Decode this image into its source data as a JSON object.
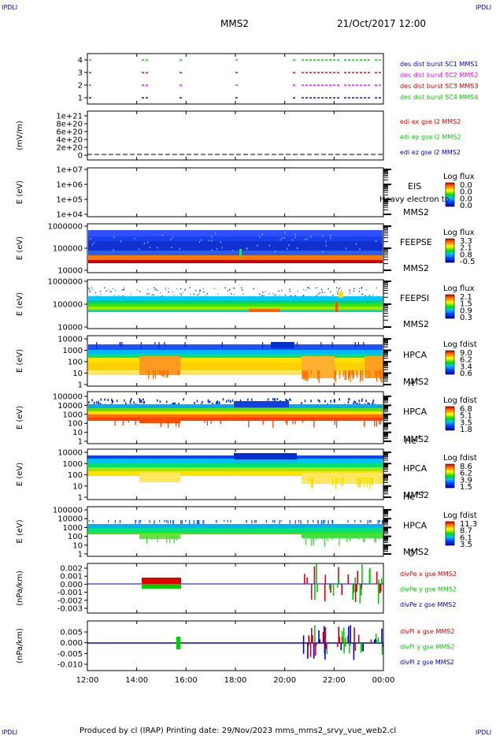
{
  "page": {
    "corner_label": "IPDLI",
    "title": "MMS2",
    "date": "21/Oct/2017 12:00",
    "footer": "Produced by cl (IRAP)    Printing date: 29/Nov/2023   mms_mms2_srvy_vue_web2.cl"
  },
  "colors": {
    "sc1": "#0000cc",
    "sc2": "#ff00ff",
    "sc3": "#dd0000",
    "sc4": "#00cc00",
    "ex": "#dd0000",
    "ey": "#00cc00",
    "ez": "#0000cc"
  },
  "chart_data": {
    "type": "multi-panel",
    "x_ticks": [
      "12:00",
      "14:00",
      "16:00",
      "18:00",
      "20:00",
      "22:00",
      "00:00"
    ],
    "panels": [
      {
        "id": "burst",
        "type": "scatter",
        "y_ticks": [
          "4",
          "3",
          "2",
          "1"
        ],
        "legend": [
          "des dist burst SC1 MMS1",
          "des dist burst SC2 MMS2",
          "des dist burst SC3 MMS3",
          "des dist burst SC4 MMS4"
        ]
      },
      {
        "id": "edi",
        "type": "line",
        "ylabel": "(mV/m)",
        "y_ticks": [
          "1e+21",
          "8e+20",
          "6e+20",
          "4e+20",
          "2e+20",
          "0"
        ],
        "legend": [
          "edi ex gse l2 MMS2",
          "edi ey gse l2 MMS2",
          "edi ez gse l2 MMS2"
        ]
      },
      {
        "id": "eis",
        "type": "heatmap",
        "ylabel": "E (eV)",
        "y_ticks": [
          "1e+07",
          "1e+06",
          "1e+05",
          "1e+04"
        ],
        "instrument": "EIS",
        "spacecraft": "MMS2",
        "overlay": "Heavy electron to",
        "cb_title": "Log flux",
        "cb_values": [
          "0.0",
          "0.0",
          "0.0",
          "0.0"
        ]
      },
      {
        "id": "feepse",
        "type": "heatmap",
        "ylabel": "E (eV)",
        "y_ticks": [
          "1000000",
          "100000",
          "10000"
        ],
        "instrument": "FEEPSE",
        "spacecraft": "MMS2",
        "cb_title": "Log flux",
        "cb_values": [
          "3.3",
          "2.1",
          "0.8",
          "-0.5"
        ]
      },
      {
        "id": "feepsi",
        "type": "heatmap",
        "ylabel": "E (eV)",
        "y_ticks": [
          "1000000",
          "100000",
          "10000"
        ],
        "instrument": "FEEPSI",
        "spacecraft": "MMS2",
        "cb_title": "Log flux",
        "cb_values": [
          "2.1",
          "1.5",
          "0.9",
          "0.3"
        ]
      },
      {
        "id": "hpca_h",
        "type": "heatmap",
        "ylabel": "E (eV)",
        "y_ticks": [
          "10000",
          "1000",
          "100",
          "10",
          "1"
        ],
        "instrument": "HPCA",
        "spacecraft": "MMS2",
        "species": "H",
        "charge": "+",
        "cb_title": "Log fdist",
        "cb_values": [
          "9.0",
          "6.2",
          "3.4",
          "0.6"
        ]
      },
      {
        "id": "hpca_he1",
        "type": "heatmap",
        "ylabel": "E (eV)",
        "y_ticks": [
          "100000",
          "10000",
          "1000",
          "100",
          "10",
          "1"
        ],
        "instrument": "HPCA",
        "spacecraft": "MMS2",
        "species": "He",
        "charge": "+",
        "cb_title": "Log fdist",
        "cb_values": [
          "6.8",
          "5.1",
          "3.5",
          "1.8"
        ]
      },
      {
        "id": "hpca_he2",
        "type": "heatmap",
        "ylabel": "E (eV)",
        "y_ticks": [
          "10000",
          "1000",
          "100",
          "10",
          "1"
        ],
        "instrument": "HPCA",
        "spacecraft": "MMS2",
        "species": "He",
        "charge": "++",
        "cb_title": "Log fdist",
        "cb_values": [
          "8.6",
          "6.2",
          "3.9",
          "1.5"
        ]
      },
      {
        "id": "hpca_o",
        "type": "heatmap",
        "ylabel": "E (eV)",
        "y_ticks": [
          "100000",
          "10000",
          "1000",
          "100",
          "10",
          "1"
        ],
        "instrument": "HPCA",
        "spacecraft": "MMS2",
        "species": "O",
        "charge": "+",
        "cb_title": "Log fdist",
        "cb_values": [
          "11.3",
          "8.7",
          "6.1",
          "3.5"
        ]
      },
      {
        "id": "divpe",
        "type": "line",
        "ylabel": "(nPa/km)",
        "y_ticks": [
          "0.002",
          "0.001",
          "0.000",
          "-0.001",
          "-0.002",
          "-0.003"
        ],
        "legend": [
          "divPe x gse MMS2",
          "divPe y gse MMS2",
          "divPe z gse MMS2"
        ]
      },
      {
        "id": "divpi",
        "type": "line",
        "ylabel": "(nPa/km)",
        "y_ticks": [
          "0.005",
          "0.000",
          "-0.005",
          "-0.010"
        ],
        "legend": [
          "divPi x gse MMS2",
          "divPi y gse MMS2",
          "divPi z gse MMS2"
        ]
      }
    ]
  }
}
